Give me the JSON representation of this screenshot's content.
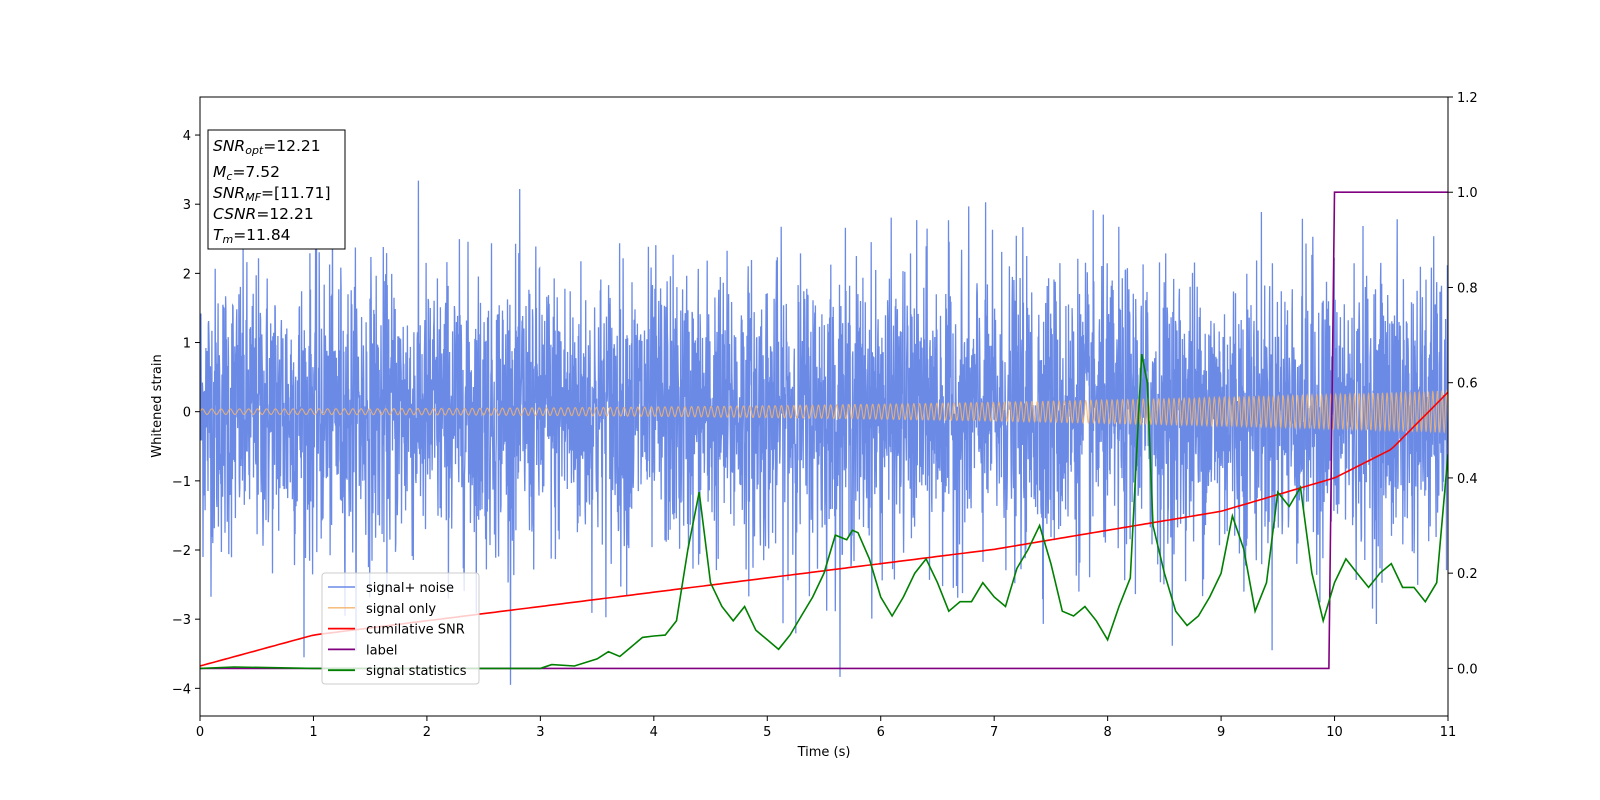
{
  "chart_data": {
    "type": "line",
    "xlabel": "Time (s)",
    "ylabel": "Whitened strain",
    "xlim": [
      0,
      11
    ],
    "ylim": [
      -4.4,
      4.55
    ],
    "y2lim": [
      -0.1,
      1.2
    ],
    "x_ticks": [
      "0",
      "1",
      "2",
      "3",
      "4",
      "5",
      "6",
      "7",
      "8",
      "9",
      "10",
      "11"
    ],
    "y_ticks": [
      {
        "value": 4,
        "label": "4"
      },
      {
        "value": 3,
        "label": "3"
      },
      {
        "value": 2,
        "label": "2"
      },
      {
        "value": 1,
        "label": "1"
      },
      {
        "value": 0,
        "label": "0"
      },
      {
        "value": -1,
        "label": "−1"
      },
      {
        "value": -2,
        "label": "−2"
      },
      {
        "value": -3,
        "label": "−3"
      },
      {
        "value": -4,
        "label": "−4"
      }
    ],
    "y2_ticks": [
      {
        "value": 0.0,
        "label": "0.0"
      },
      {
        "value": 0.2,
        "label": "0.2"
      },
      {
        "value": 0.4,
        "label": "0.4"
      },
      {
        "value": 0.6,
        "label": "0.6"
      },
      {
        "value": 0.8,
        "label": "0.8"
      },
      {
        "value": 1.0,
        "label": "1.0"
      },
      {
        "value": 1.2,
        "label": "1.2"
      }
    ],
    "grid": false,
    "legend_position": "bottom-left",
    "annotation": [
      {
        "main": "SNR",
        "sub": "opt",
        "value": "=12.21"
      },
      {
        "main": "M",
        "sub": "c",
        "value": "=7.52"
      },
      {
        "main": "SNR",
        "sub": "MF",
        "value": "=[11.71]"
      },
      {
        "main": "CSNR",
        "sub": "",
        "value": "=12.21"
      },
      {
        "main": "T",
        "sub": "m",
        "value": "=11.84"
      }
    ],
    "series": [
      {
        "name": "signal+ noise",
        "axis": "left",
        "color": "#6a8ae6",
        "std": 1.0,
        "peak": 4.15
      },
      {
        "name": "signal only",
        "axis": "left",
        "color": "#f5b46e",
        "amplitude_start": 0.04,
        "amplitude_end": 0.3
      },
      {
        "name": "cumilative SNR",
        "axis": "right",
        "color": "#ff0000",
        "x": [
          0,
          1,
          2,
          3,
          4,
          5,
          6,
          7,
          8,
          9,
          10,
          10.5,
          11
        ],
        "values": [
          0.005,
          0.07,
          0.1,
          0.13,
          0.16,
          0.19,
          0.22,
          0.25,
          0.29,
          0.33,
          0.4,
          0.46,
          0.58
        ]
      },
      {
        "name": "label",
        "axis": "right",
        "color": "#800080",
        "x": [
          0,
          9.95,
          10.0,
          11
        ],
        "values": [
          0,
          0,
          1,
          1
        ]
      },
      {
        "name": "signal statistics",
        "axis": "right",
        "color": "#008000",
        "x": [
          0,
          0.3,
          1,
          2,
          3,
          3.1,
          3.3,
          3.5,
          3.6,
          3.7,
          3.8,
          3.9,
          4.0,
          4.1,
          4.2,
          4.3,
          4.4,
          4.5,
          4.6,
          4.7,
          4.8,
          4.9,
          5.0,
          5.1,
          5.2,
          5.3,
          5.4,
          5.5,
          5.6,
          5.7,
          5.75,
          5.8,
          5.9,
          6.0,
          6.1,
          6.2,
          6.3,
          6.4,
          6.5,
          6.6,
          6.7,
          6.8,
          6.9,
          7.0,
          7.1,
          7.2,
          7.3,
          7.4,
          7.5,
          7.6,
          7.7,
          7.8,
          7.9,
          8.0,
          8.1,
          8.2,
          8.3,
          8.35,
          8.4,
          8.5,
          8.6,
          8.7,
          8.8,
          8.9,
          9.0,
          9.1,
          9.2,
          9.3,
          9.4,
          9.5,
          9.6,
          9.7,
          9.8,
          9.9,
          10.0,
          10.1,
          10.2,
          10.3,
          10.4,
          10.5,
          10.6,
          10.7,
          10.8,
          10.9,
          11.0
        ],
        "values": [
          0.0,
          0.003,
          0.0,
          0.0,
          0.0,
          0.008,
          0.005,
          0.02,
          0.035,
          0.025,
          0.045,
          0.065,
          0.068,
          0.07,
          0.1,
          0.25,
          0.37,
          0.18,
          0.13,
          0.1,
          0.13,
          0.08,
          0.06,
          0.04,
          0.07,
          0.11,
          0.15,
          0.2,
          0.28,
          0.27,
          0.29,
          0.285,
          0.23,
          0.15,
          0.11,
          0.15,
          0.2,
          0.23,
          0.18,
          0.12,
          0.14,
          0.14,
          0.18,
          0.15,
          0.13,
          0.21,
          0.25,
          0.3,
          0.22,
          0.12,
          0.11,
          0.13,
          0.1,
          0.06,
          0.13,
          0.19,
          0.66,
          0.6,
          0.3,
          0.2,
          0.12,
          0.09,
          0.11,
          0.15,
          0.2,
          0.32,
          0.25,
          0.12,
          0.18,
          0.37,
          0.34,
          0.38,
          0.2,
          0.1,
          0.18,
          0.23,
          0.2,
          0.17,
          0.2,
          0.22,
          0.17,
          0.17,
          0.14,
          0.18,
          0.45
        ]
      }
    ]
  }
}
